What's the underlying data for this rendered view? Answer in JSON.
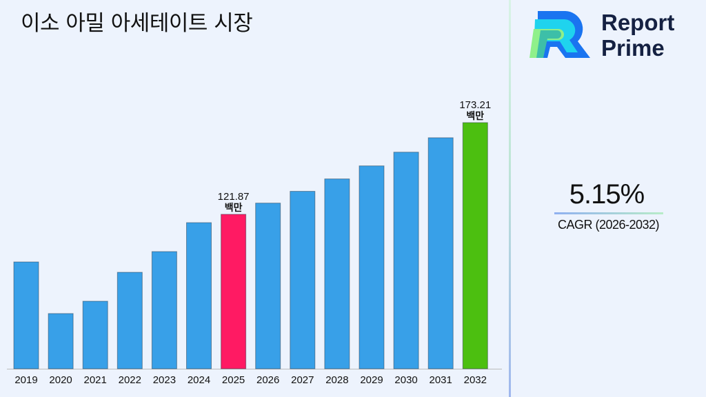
{
  "title": "이소 아밀 아세테이트 시장",
  "brand": {
    "line1": "Report",
    "line2": "Prime"
  },
  "cagr": {
    "value": "5.15%",
    "label": "CAGR (2026-2032)"
  },
  "colors": {
    "default_bar": "#38a0e8",
    "highlight_2025": "#ff1a63",
    "highlight_2032": "#4cbf10"
  },
  "chart_data": {
    "type": "bar",
    "title": "이소 아밀 아세테이트 시장",
    "categories": [
      "2019",
      "2020",
      "2021",
      "2022",
      "2023",
      "2024",
      "2025",
      "2026",
      "2027",
      "2028",
      "2029",
      "2030",
      "2031",
      "2032"
    ],
    "values": [
      95.2,
      66.3,
      73.2,
      89.4,
      101.0,
      117.2,
      121.87,
      128.15,
      134.75,
      141.69,
      148.99,
      156.67,
      164.74,
      173.21
    ],
    "data_labels": {
      "2025": {
        "value": "121.87",
        "unit": "백만"
      },
      "2032": {
        "value": "173.21",
        "unit": "백만"
      }
    },
    "ylim": [
      35.4,
      191.7
    ],
    "grid": false,
    "xlabel": "",
    "ylabel": ""
  }
}
